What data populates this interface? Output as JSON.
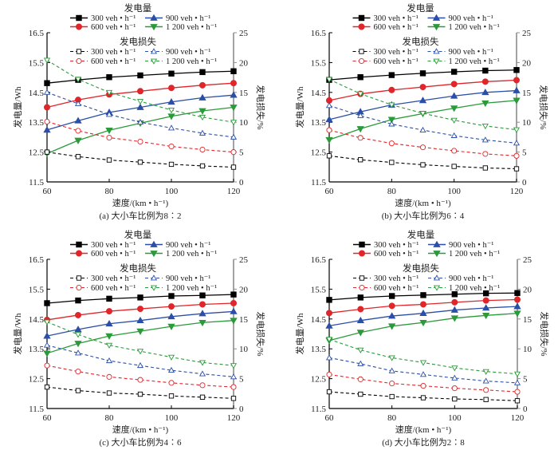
{
  "figure": {
    "legend_power_title": "发电量",
    "legend_loss_title": "发电损失",
    "flow_labels": [
      "300 veh • h⁻¹",
      "600 veh • h⁻¹",
      "900 veh • h⁻¹",
      "1 200 veh • h⁻¹"
    ],
    "colors": {
      "300": "#000000",
      "600": "#e0262a",
      "900": "#2b4fa8",
      "1200": "#2a9a3a",
      "right_axis": "#8c8c8c"
    }
  },
  "chart_data": [
    {
      "type": "line",
      "panel": "a",
      "caption": "(a)   大小车比例为8∶2",
      "xlabel": "速度/(km • h⁻¹)",
      "ylabel": "发电量/Wh",
      "y2label": "发电损失/%",
      "x": [
        60,
        70,
        80,
        90,
        100,
        110,
        120
      ],
      "xticks": [
        60,
        80,
        100,
        120
      ],
      "xlim": [
        60,
        120
      ],
      "ylim": [
        11.5,
        16.5
      ],
      "yticks": [
        "11.5",
        "12.5",
        "13.5",
        "14.5",
        "15.5",
        "16.5"
      ],
      "y2lim": [
        0,
        25
      ],
      "y2ticks": [
        "0",
        "5",
        "10",
        "15",
        "20",
        "25"
      ],
      "series": [
        {
          "name": "发电量 300 veh • h⁻¹",
          "axis": "left",
          "flow": "300",
          "values": [
            14.81,
            14.92,
            15.01,
            15.07,
            15.13,
            15.18,
            15.21
          ]
        },
        {
          "name": "发电量 600 veh • h⁻¹",
          "axis": "left",
          "flow": "600",
          "values": [
            14.0,
            14.25,
            14.43,
            14.54,
            14.65,
            14.74,
            14.81
          ]
        },
        {
          "name": "发电量 900 veh • h⁻¹",
          "axis": "left",
          "flow": "900",
          "values": [
            13.24,
            13.55,
            13.83,
            14.0,
            14.18,
            14.32,
            14.41
          ]
        },
        {
          "name": "发电量 1 200 veh • h⁻¹",
          "axis": "left",
          "flow": "1200",
          "values": [
            12.45,
            12.89,
            13.23,
            13.47,
            13.7,
            13.88,
            14.0
          ]
        },
        {
          "name": "发电损失 300 veh • h⁻¹",
          "axis": "right",
          "flow": "300",
          "values": [
            5.0,
            4.24,
            3.67,
            3.31,
            2.95,
            2.68,
            2.47
          ]
        },
        {
          "name": "发电损失 600 veh • h⁻¹",
          "axis": "right",
          "flow": "600",
          "values": [
            10.1,
            8.57,
            7.42,
            6.75,
            5.95,
            5.41,
            5.0
          ]
        },
        {
          "name": "发电损失 900 veh • h⁻¹",
          "axis": "right",
          "flow": "900",
          "values": [
            15.0,
            13.1,
            11.3,
            10.0,
            9.03,
            8.17,
            7.5
          ]
        },
        {
          "name": "发电损失 1 200 veh • h⁻¹",
          "axis": "right",
          "flow": "1200",
          "values": [
            20.4,
            17.2,
            15.0,
            13.5,
            12.05,
            10.85,
            10.0
          ]
        }
      ]
    },
    {
      "type": "line",
      "panel": "b",
      "caption": "(b)   大小车比例为6∶4",
      "xlabel": "速度/(km • h⁻¹)",
      "ylabel": "发电量/Wh",
      "y2label": "发电损失/%",
      "x": [
        60,
        70,
        80,
        90,
        100,
        110,
        120
      ],
      "xticks": [
        60,
        80,
        100,
        120
      ],
      "xlim": [
        60,
        120
      ],
      "ylim": [
        11.5,
        16.5
      ],
      "yticks": [
        "11.5",
        "12.5",
        "13.5",
        "14.5",
        "15.5",
        "16.5"
      ],
      "y2lim": [
        0,
        25
      ],
      "y2ticks": [
        "0",
        "5",
        "10",
        "15",
        "20",
        "25"
      ],
      "series": [
        {
          "name": "发电量 300 veh • h⁻¹",
          "axis": "left",
          "flow": "300",
          "values": [
            14.92,
            15.01,
            15.08,
            15.14,
            15.19,
            15.23,
            15.25
          ]
        },
        {
          "name": "发电量 600 veh • h⁻¹",
          "axis": "left",
          "flow": "600",
          "values": [
            14.23,
            14.45,
            14.58,
            14.68,
            14.78,
            14.86,
            14.91
          ]
        },
        {
          "name": "发电量 900 veh • h⁻¹",
          "axis": "left",
          "flow": "900",
          "values": [
            13.59,
            13.85,
            14.08,
            14.23,
            14.38,
            14.5,
            14.56
          ]
        },
        {
          "name": "发电量 1 200 veh • h⁻¹",
          "axis": "left",
          "flow": "1200",
          "values": [
            12.91,
            13.28,
            13.59,
            13.79,
            13.97,
            14.14,
            14.23
          ]
        },
        {
          "name": "发电损失 300 veh • h⁻¹",
          "axis": "right",
          "flow": "300",
          "values": [
            4.37,
            3.71,
            3.27,
            2.87,
            2.6,
            2.34,
            2.2
          ]
        },
        {
          "name": "发电损失 600 veh • h⁻¹",
          "axis": "right",
          "flow": "600",
          "values": [
            8.68,
            7.39,
            6.46,
            5.8,
            5.22,
            4.69,
            4.37
          ]
        },
        {
          "name": "发电损失 900 veh • h⁻¹",
          "axis": "right",
          "flow": "900",
          "values": [
            12.79,
            11.1,
            9.69,
            8.68,
            7.75,
            7.03,
            6.5
          ]
        },
        {
          "name": "发电损失 1 200 veh • h⁻¹",
          "axis": "right",
          "flow": "1200",
          "values": [
            17.17,
            14.77,
            12.91,
            11.5,
            10.34,
            9.37,
            8.75
          ]
        }
      ]
    },
    {
      "type": "line",
      "panel": "c",
      "caption": "(c)   大小车比例为4∶6",
      "xlabel": "速度/(km • h⁻¹)",
      "ylabel": "发电量/Wh",
      "y2label": "发电损失/%",
      "x": [
        60,
        70,
        80,
        90,
        100,
        110,
        120
      ],
      "xticks": [
        60,
        80,
        100,
        120
      ],
      "xlim": [
        60,
        120
      ],
      "ylim": [
        11.5,
        16.5
      ],
      "yticks": [
        "11.5",
        "12.5",
        "13.5",
        "14.5",
        "15.5",
        "16.5"
      ],
      "y2lim": [
        0,
        25
      ],
      "y2ticks": [
        "0",
        "5",
        "10",
        "15",
        "20",
        "25"
      ],
      "series": [
        {
          "name": "发电量 300 veh • h⁻¹",
          "axis": "left",
          "flow": "300",
          "values": [
            15.03,
            15.12,
            15.18,
            15.22,
            15.27,
            15.29,
            15.32
          ]
        },
        {
          "name": "发电量 600 veh • h⁻¹",
          "axis": "left",
          "flow": "600",
          "values": [
            14.47,
            14.63,
            14.76,
            14.84,
            14.92,
            14.99,
            15.03
          ]
        },
        {
          "name": "发电量 900 veh • h⁻¹",
          "axis": "left",
          "flow": "900",
          "values": [
            13.93,
            14.15,
            14.34,
            14.45,
            14.58,
            14.68,
            14.75
          ]
        },
        {
          "name": "发电量 1 200 veh • h⁻¹",
          "axis": "left",
          "flow": "1200",
          "values": [
            13.35,
            13.68,
            13.93,
            14.09,
            14.25,
            14.38,
            14.45
          ]
        },
        {
          "name": "发电损失 300 veh • h⁻¹",
          "axis": "right",
          "flow": "300",
          "values": [
            3.6,
            3.0,
            2.6,
            2.4,
            2.1,
            1.9,
            1.7
          ]
        },
        {
          "name": "发电损失 600 veh • h⁻¹",
          "axis": "right",
          "flow": "600",
          "values": [
            7.2,
            6.2,
            5.3,
            4.8,
            4.3,
            3.9,
            3.6
          ]
        },
        {
          "name": "发电损失 900 veh • h⁻¹",
          "axis": "right",
          "flow": "900",
          "values": [
            10.6,
            9.3,
            8.0,
            7.2,
            6.4,
            5.8,
            5.3
          ]
        },
        {
          "name": "发电损失 1 200 veh • h⁻¹",
          "axis": "right",
          "flow": "1200",
          "values": [
            14.5,
            12.4,
            10.6,
            9.6,
            8.6,
            7.7,
            7.2
          ]
        }
      ]
    },
    {
      "type": "line",
      "panel": "d",
      "caption": "(d)   大小车比例为2∶8",
      "xlabel": "速度/(km • h⁻¹)",
      "ylabel": "发电量/Wh",
      "y2label": "发电损失/%",
      "x": [
        60,
        70,
        80,
        90,
        100,
        110,
        120
      ],
      "xticks": [
        60,
        80,
        100,
        120
      ],
      "xlim": [
        60,
        120
      ],
      "ylim": [
        11.5,
        16.5
      ],
      "yticks": [
        "11.5",
        "12.5",
        "13.5",
        "14.5",
        "15.5",
        "16.5"
      ],
      "y2lim": [
        0,
        25
      ],
      "y2ticks": [
        "0",
        "5",
        "10",
        "15",
        "20",
        "25"
      ],
      "series": [
        {
          "name": "发电量 300 veh • h⁻¹",
          "axis": "left",
          "flow": "300",
          "values": [
            15.14,
            15.22,
            15.27,
            15.3,
            15.33,
            15.36,
            15.37
          ]
        },
        {
          "name": "发电量 600 veh • h⁻¹",
          "axis": "left",
          "flow": "600",
          "values": [
            14.7,
            14.83,
            14.94,
            14.99,
            15.06,
            15.12,
            15.15
          ]
        },
        {
          "name": "发电量 900 veh • h⁻¹",
          "axis": "left",
          "flow": "900",
          "values": [
            14.27,
            14.45,
            14.6,
            14.69,
            14.8,
            14.87,
            14.92
          ]
        },
        {
          "name": "发电量 1 200 veh • h⁻¹",
          "axis": "left",
          "flow": "1200",
          "values": [
            13.78,
            14.05,
            14.26,
            14.38,
            14.53,
            14.62,
            14.69
          ]
        },
        {
          "name": "发电损失 300 veh • h⁻¹",
          "axis": "right",
          "flow": "300",
          "values": [
            2.8,
            2.4,
            2.0,
            1.8,
            1.6,
            1.5,
            1.3
          ]
        },
        {
          "name": "发电损失 600 veh • h⁻¹",
          "axis": "right",
          "flow": "600",
          "values": [
            5.7,
            4.9,
            4.2,
            3.8,
            3.4,
            3.1,
            2.8
          ]
        },
        {
          "name": "发电损失 900 veh • h⁻¹",
          "axis": "right",
          "flow": "900",
          "values": [
            8.5,
            7.5,
            6.3,
            5.7,
            5.1,
            4.6,
            4.3
          ]
        },
        {
          "name": "发电损失 1 200 veh • h⁻¹",
          "axis": "right",
          "flow": "1200",
          "values": [
            11.6,
            9.8,
            8.5,
            7.7,
            6.8,
            6.2,
            5.8
          ]
        }
      ]
    }
  ]
}
